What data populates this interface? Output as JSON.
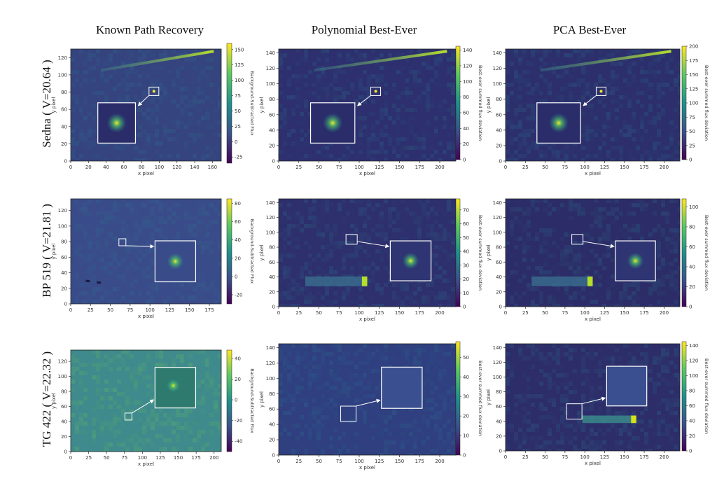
{
  "figure": {
    "column_titles": [
      "Known Path Recovery",
      "Polynomial Best-Ever",
      "PCA Best-Ever"
    ],
    "row_labels": [
      "Sedna ( V=20.64 )",
      "BP 519 ( V=21.81 )",
      "TG 422 ( V=22.32 )"
    ],
    "colors": {
      "viridis_low": "#3b2a6e",
      "viridis_mid": "#21918c",
      "viridis_high": "#fde725",
      "box": "#ffffff"
    }
  },
  "chart_data": [
    {
      "type": "heatmap",
      "row": 0,
      "col": 0,
      "xlabel": "x pixel",
      "ylabel": "y pixel",
      "colorbar_label": "Background-Subtracted Flux",
      "xticks": [
        "0",
        "20",
        "40",
        "60",
        "80",
        "100",
        "120",
        "140",
        "160"
      ],
      "yticks": [
        "0",
        "20",
        "40",
        "60",
        "80",
        "100",
        "120"
      ],
      "cbar_ticks": [
        "150",
        "125",
        "100",
        "75",
        "50",
        "25",
        "0",
        "-25"
      ],
      "xlim": [
        0,
        170
      ],
      "ylim": [
        0,
        130
      ],
      "clim": [
        -35,
        160
      ]
    },
    {
      "type": "heatmap",
      "row": 0,
      "col": 1,
      "xlabel": "x pixel",
      "ylabel": "y pixel",
      "colorbar_label": "Best-ever summed flux deviation",
      "xticks": [
        "0",
        "25",
        "50",
        "75",
        "100",
        "125",
        "150",
        "175",
        "200"
      ],
      "yticks": [
        "0",
        "20",
        "40",
        "60",
        "80",
        "100",
        "120",
        "140"
      ],
      "cbar_ticks": [
        "140",
        "120",
        "100",
        "80",
        "60",
        "40",
        "20",
        "0"
      ],
      "xlim": [
        0,
        220
      ],
      "ylim": [
        0,
        145
      ],
      "clim": [
        0,
        145
      ]
    },
    {
      "type": "heatmap",
      "row": 0,
      "col": 2,
      "xlabel": "x pixel",
      "ylabel": "y pixel",
      "colorbar_label": "Best-ever summed flux deviation",
      "xticks": [
        "0",
        "25",
        "50",
        "75",
        "100",
        "125",
        "150",
        "175",
        "200"
      ],
      "yticks": [
        "0",
        "20",
        "40",
        "60",
        "80",
        "100",
        "120",
        "140"
      ],
      "cbar_ticks": [
        "200",
        "175",
        "150",
        "125",
        "100",
        "75",
        "50",
        "25",
        "0"
      ],
      "xlim": [
        0,
        220
      ],
      "ylim": [
        0,
        145
      ],
      "clim": [
        0,
        200
      ]
    },
    {
      "type": "heatmap",
      "row": 1,
      "col": 0,
      "xlabel": "x pixel",
      "ylabel": "y pixel",
      "colorbar_label": "Background-Subtracted Flux",
      "xticks": [
        "0",
        "25",
        "50",
        "75",
        "100",
        "125",
        "150",
        "175"
      ],
      "yticks": [
        "0",
        "20",
        "40",
        "60",
        "80",
        "100",
        "120"
      ],
      "cbar_ticks": [
        "80",
        "60",
        "40",
        "20",
        "0",
        "-20"
      ],
      "xlim": [
        0,
        190
      ],
      "ylim": [
        0,
        135
      ],
      "clim": [
        -30,
        85
      ]
    },
    {
      "type": "heatmap",
      "row": 1,
      "col": 1,
      "xlabel": "x pixel",
      "ylabel": "y pixel",
      "colorbar_label": "Best-ever summed flux deviation",
      "xticks": [
        "0",
        "25",
        "50",
        "75",
        "100",
        "125",
        "150",
        "175",
        "200"
      ],
      "yticks": [
        "0",
        "20",
        "40",
        "60",
        "80",
        "100",
        "120",
        "140"
      ],
      "cbar_ticks": [
        "70",
        "60",
        "50",
        "40",
        "30",
        "20",
        "10",
        "0"
      ],
      "xlim": [
        0,
        220
      ],
      "ylim": [
        0,
        145
      ],
      "clim": [
        0,
        78
      ]
    },
    {
      "type": "heatmap",
      "row": 1,
      "col": 2,
      "xlabel": "x pixel",
      "ylabel": "y pixel",
      "colorbar_label": "Best-ever summed flux deviation",
      "xticks": [
        "0",
        "25",
        "50",
        "75",
        "100",
        "125",
        "150",
        "175",
        "200"
      ],
      "yticks": [
        "0",
        "20",
        "40",
        "60",
        "80",
        "100",
        "120",
        "140"
      ],
      "cbar_ticks": [
        "100",
        "80",
        "60",
        "40",
        "20",
        "0"
      ],
      "xlim": [
        0,
        220
      ],
      "ylim": [
        0,
        145
      ],
      "clim": [
        0,
        108
      ]
    },
    {
      "type": "heatmap",
      "row": 2,
      "col": 0,
      "xlabel": "x pixel",
      "ylabel": "y pixel",
      "colorbar_label": "Background-Subtracted Flux",
      "xticks": [
        "0",
        "25",
        "50",
        "75",
        "100",
        "125",
        "150",
        "175",
        "200"
      ],
      "yticks": [
        "0",
        "20",
        "40",
        "60",
        "80",
        "100",
        "120"
      ],
      "cbar_ticks": [
        "40",
        "20",
        "0",
        "-20",
        "-40"
      ],
      "xlim": [
        0,
        210
      ],
      "ylim": [
        0,
        135
      ],
      "clim": [
        -50,
        48
      ]
    },
    {
      "type": "heatmap",
      "row": 2,
      "col": 1,
      "xlabel": "x pixel",
      "ylabel": "y pixel",
      "colorbar_label": "Best-ever summed flux deviation",
      "xticks": [
        "0",
        "25",
        "50",
        "75",
        "100",
        "125",
        "150",
        "175",
        "200"
      ],
      "yticks": [
        "0",
        "20",
        "40",
        "60",
        "80",
        "100",
        "120",
        "140"
      ],
      "cbar_ticks": [
        "50",
        "40",
        "30",
        "20",
        "10",
        "0"
      ],
      "xlim": [
        0,
        220
      ],
      "ylim": [
        0,
        145
      ],
      "clim": [
        0,
        58
      ]
    },
    {
      "type": "heatmap",
      "row": 2,
      "col": 2,
      "xlabel": "x pixel",
      "ylabel": "y pixel",
      "colorbar_label": "Best-ever summed flux deviation",
      "xticks": [
        "0",
        "25",
        "50",
        "75",
        "100",
        "125",
        "150",
        "175",
        "200"
      ],
      "yticks": [
        "0",
        "20",
        "40",
        "60",
        "80",
        "100",
        "120",
        "140"
      ],
      "cbar_ticks": [
        "140",
        "120",
        "100",
        "80",
        "60",
        "40",
        "20",
        "0"
      ],
      "xlim": [
        0,
        220
      ],
      "ylim": [
        0,
        145
      ],
      "clim": [
        0,
        145
      ]
    }
  ]
}
